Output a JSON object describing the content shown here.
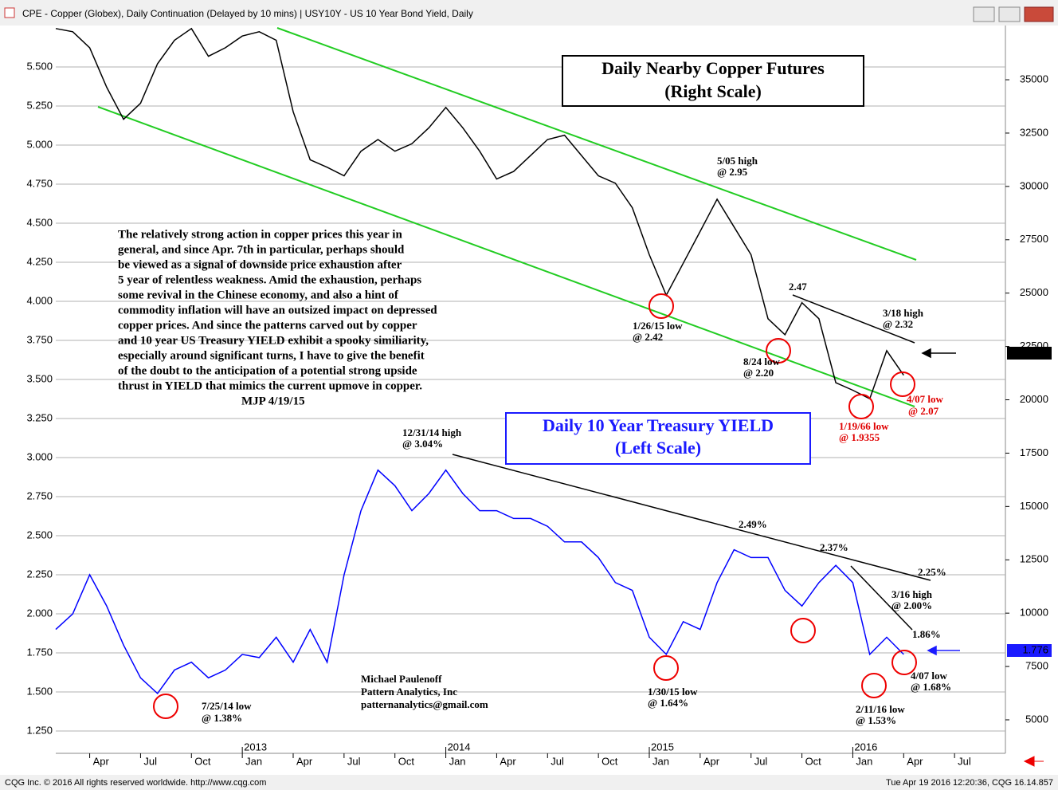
{
  "chart_data": {
    "type": "line",
    "window_title": "CPE - Copper (Globex), Daily Continuation (Delayed by 10 mins)   |   USY10Y - US 10 Year Bond Yield, Daily",
    "footer_left": "CQG Inc. © 2016 All rights reserved worldwide. http://www.cqg.com",
    "footer_right": "Tue Apr 19 2016 12:20:36, CQG 16.14.857",
    "copper_box": [
      "Daily Nearby Copper Futures",
      "(Right Scale)"
    ],
    "yield_box": [
      "Daily 10 Year Treasury YIELD",
      "(Left Scale)"
    ],
    "commentary": [
      "The relatively strong action in copper prices this year in",
      "general, and since Apr. 7th in particular, perhaps should",
      "be viewed as a signal of downside price exhaustion after",
      "5 year of relentless weakness. Amid the exhaustion, perhaps",
      "some revival in the Chinese economy, and also a hint of",
      "commodity inflation will have an outsized impact on depressed",
      "copper prices. And since the patterns carved out by copper",
      "and 10 year US Treasury YIELD exhibit a spooky similiarity,",
      "especially around significant turns, I have to give the benefit",
      "of the doubt to the anticipation of a potential strong upside",
      "thrust in YIELD that mimics the current upmove in copper.",
      "MJP 4/19/15"
    ],
    "annotations": [
      {
        "text": "5/05 high",
        "color": "#000000"
      },
      {
        "text": "@ 2.95",
        "color": "#000000"
      },
      {
        "text": "2.47",
        "color": "#000000"
      },
      {
        "text": "3/18 high",
        "color": "#000000"
      },
      {
        "text": "@ 2.32",
        "color": "#000000"
      },
      {
        "text": "1/26/15 low",
        "color": "#000000"
      },
      {
        "text": "@ 2.42",
        "color": "#000000"
      },
      {
        "text": "8/24 low",
        "color": "#000000"
      },
      {
        "text": "@ 2.20",
        "color": "#000000"
      },
      {
        "text": "4/07 low",
        "color": "#e00000"
      },
      {
        "text": "@ 2.07",
        "color": "#e00000"
      },
      {
        "text": "1/19/66 low",
        "color": "#e00000"
      },
      {
        "text": "@ 1.9355",
        "color": "#e00000"
      },
      {
        "text": "12/31/14 high",
        "color": "#000000"
      },
      {
        "text": "@ 3.04%",
        "color": "#000000"
      },
      {
        "text": "2.49%",
        "color": "#000000"
      },
      {
        "text": "2.37%",
        "color": "#000000"
      },
      {
        "text": "2.25%",
        "color": "#000000"
      },
      {
        "text": "3/16 high",
        "color": "#000000"
      },
      {
        "text": "@ 2.00%",
        "color": "#000000"
      },
      {
        "text": "1.86%",
        "color": "#000000"
      },
      {
        "text": "4/07 low",
        "color": "#000000"
      },
      {
        "text": "@ 1.68%",
        "color": "#000000"
      },
      {
        "text": "1/30/15 low",
        "color": "#000000"
      },
      {
        "text": "@ 1.64%",
        "color": "#000000"
      },
      {
        "text": "2/11/16 low",
        "color": "#000000"
      },
      {
        "text": "@ 1.53%",
        "color": "#000000"
      },
      {
        "text": "7/25/14 low",
        "color": "#000000"
      },
      {
        "text": "@ 1.38%",
        "color": "#000000"
      },
      {
        "text": "Michael Paulenoff",
        "color": "#000000"
      },
      {
        "text": "Pattern Analytics, Inc",
        "color": "#000000"
      },
      {
        "text": "patternanalytics@gmail.com",
        "color": "#000000"
      }
    ],
    "last_value_labels": [
      {
        "text": "22185",
        "color": "#000000"
      },
      {
        "text": "1.776",
        "color": "#1a1aff"
      }
    ],
    "x": [
      "2012-02",
      "2012-03",
      "2012-04",
      "2012-05",
      "2012-06",
      "2012-07",
      "2012-08",
      "2012-09",
      "2012-10",
      "2012-11",
      "2012-12",
      "2013-01",
      "2013-02",
      "2013-03",
      "2013-04",
      "2013-05",
      "2013-06",
      "2013-07",
      "2013-08",
      "2013-09",
      "2013-10",
      "2013-11",
      "2013-12",
      "2014-01",
      "2014-02",
      "2014-03",
      "2014-04",
      "2014-05",
      "2014-06",
      "2014-07",
      "2014-08",
      "2014-09",
      "2014-10",
      "2014-11",
      "2014-12",
      "2015-01",
      "2015-02",
      "2015-03",
      "2015-04",
      "2015-05",
      "2015-06",
      "2015-07",
      "2015-08",
      "2015-09",
      "2015-10",
      "2015-11",
      "2015-12",
      "2016-01",
      "2016-02",
      "2016-03",
      "2016-04"
    ],
    "series": [
      {
        "name": "CPE - Copper (Globex)",
        "color": "#000000",
        "axis": "y2",
        "values": [
          37400,
          37250,
          36500,
          34650,
          33150,
          33900,
          35750,
          36850,
          37400,
          36100,
          36500,
          37050,
          37250,
          36850,
          33500,
          31250,
          30900,
          30500,
          31650,
          32200,
          31650,
          32000,
          32750,
          33700,
          32750,
          31650,
          30350,
          30700,
          31450,
          32200,
          32400,
          31450,
          30500,
          30150,
          29000,
          26800,
          24900,
          26400,
          27900,
          29400,
          28100,
          26800,
          23800,
          23050,
          24550,
          23800,
          20800,
          20450,
          20050,
          22300,
          21150
        ]
      },
      {
        "name": "USY10Y - US 10 Year Bond Yield",
        "color": "#0000ff",
        "axis": "y",
        "values": [
          1.9,
          2.0,
          2.25,
          2.05,
          1.8,
          1.59,
          1.49,
          1.64,
          1.69,
          1.59,
          1.64,
          1.74,
          1.72,
          1.85,
          1.69,
          1.9,
          1.69,
          2.25,
          2.66,
          2.92,
          2.82,
          2.66,
          2.77,
          2.92,
          2.77,
          2.66,
          2.66,
          2.61,
          2.61,
          2.56,
          2.46,
          2.46,
          2.36,
          2.2,
          2.15,
          1.85,
          1.74,
          1.95,
          1.9,
          2.2,
          2.41,
          2.36,
          2.36,
          2.15,
          2.05,
          2.2,
          2.31,
          2.2,
          1.74,
          1.85,
          1.74
        ]
      }
    ],
    "xlim": [
      "2012-02",
      "2016-10"
    ],
    "xticks": [
      {
        "value": "2012-04",
        "label": "Apr"
      },
      {
        "value": "2012-07",
        "label": "Jul"
      },
      {
        "value": "2012-10",
        "label": "Oct"
      },
      {
        "value": "2013-01",
        "label": "Jan"
      },
      {
        "value": "2013-04",
        "label": "Apr"
      },
      {
        "value": "2013-07",
        "label": "Jul"
      },
      {
        "value": "2013-10",
        "label": "Oct"
      },
      {
        "value": "2014-01",
        "label": "Jan"
      },
      {
        "value": "2014-04",
        "label": "Apr"
      },
      {
        "value": "2014-07",
        "label": "Jul"
      },
      {
        "value": "2014-10",
        "label": "Oct"
      },
      {
        "value": "2015-01",
        "label": "Jan"
      },
      {
        "value": "2015-04",
        "label": "Apr"
      },
      {
        "value": "2015-07",
        "label": "Jul"
      },
      {
        "value": "2015-10",
        "label": "Oct"
      },
      {
        "value": "2016-01",
        "label": "Jan"
      },
      {
        "value": "2016-04",
        "label": "Apr"
      },
      {
        "value": "2016-07",
        "label": "Jul"
      }
    ],
    "year_ticks": [
      {
        "value": "2013-01",
        "label": "2013"
      },
      {
        "value": "2014-01",
        "label": "2014"
      },
      {
        "value": "2015-01",
        "label": "2015"
      },
      {
        "value": "2016-01",
        "label": "2016"
      }
    ],
    "ylim": [
      1.107,
      5.75
    ],
    "yticks": [
      {
        "value": 1.25,
        "label": "1.250"
      },
      {
        "value": 1.5,
        "label": "1.500"
      },
      {
        "value": 1.75,
        "label": "1.750"
      },
      {
        "value": 2,
        "label": "2.000"
      },
      {
        "value": 2.25,
        "label": "2.250"
      },
      {
        "value": 2.5,
        "label": "2.500"
      },
      {
        "value": 2.75,
        "label": "2.750"
      },
      {
        "value": 3,
        "label": "3.000"
      },
      {
        "value": 3.25,
        "label": "3.250"
      },
      {
        "value": 3.5,
        "label": "3.500"
      },
      {
        "value": 3.75,
        "label": "3.750"
      },
      {
        "value": 4,
        "label": "4.000"
      },
      {
        "value": 4.25,
        "label": "4.250"
      },
      {
        "value": 4.5,
        "label": "4.500"
      },
      {
        "value": 4.75,
        "label": "4.750"
      },
      {
        "value": 5,
        "label": "5.000"
      },
      {
        "value": 5.25,
        "label": "5.250"
      },
      {
        "value": 5.5,
        "label": "5.500"
      }
    ],
    "y2lim": [
      3430,
      37430
    ],
    "y2ticks": [
      5000,
      7500,
      10000,
      12500,
      15000,
      17500,
      20000,
      22500,
      25000,
      27500,
      30000,
      32500,
      35000
    ],
    "grid": true
  }
}
